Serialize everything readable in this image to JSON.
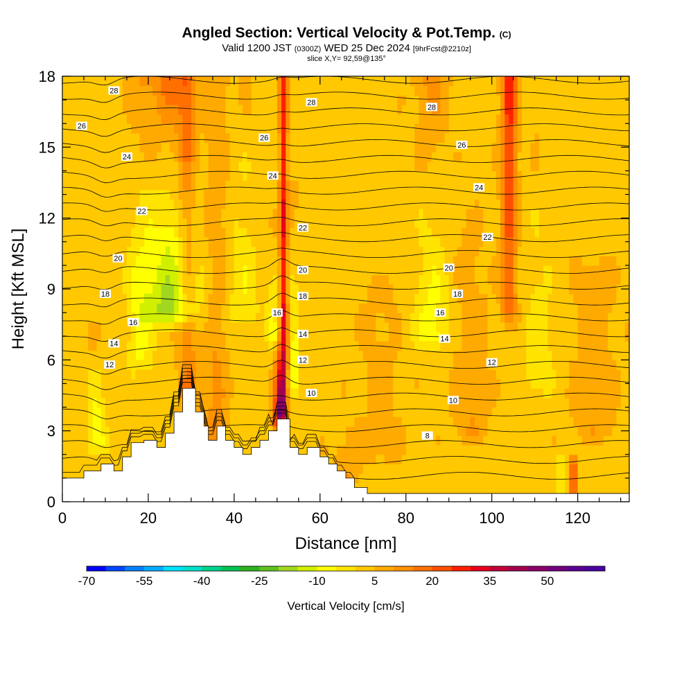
{
  "header": {
    "title": "Angled Section: Vertical Velocity & Pot.Temp.",
    "title_unit": "(C)",
    "valid_prefix": "Valid 1200 JST",
    "valid_utc": "(0300Z)",
    "valid_suffix": "WED 25 Dec 2024",
    "forecast": "[9hrFcst@2210z]",
    "slice": "slice X,Y= 92,59@135°"
  },
  "chart_data": {
    "type": "heatmap",
    "xlabel": "Distance [nm]",
    "ylabel": "Height [Kft MSL]",
    "xlim": [
      0,
      132
    ],
    "ylim": [
      0,
      18
    ],
    "x_ticks": [
      0,
      20,
      40,
      60,
      80,
      100,
      120
    ],
    "y_ticks": [
      0,
      3,
      6,
      9,
      12,
      15,
      18
    ],
    "colorbar": {
      "label": "Vertical Velocity [cm/s]",
      "tick_labels": [
        "-70",
        "-55",
        "-40",
        "-25",
        "-10",
        "5",
        "20",
        "35",
        "50"
      ],
      "min": -70,
      "max": 65,
      "step": 5,
      "colors": [
        "#0000ff",
        "#0044ff",
        "#0080ff",
        "#00aaff",
        "#00e0ff",
        "#00e0c8",
        "#00d08c",
        "#00c050",
        "#30b020",
        "#60c020",
        "#a0d820",
        "#d0f000",
        "#ffff00",
        "#ffe400",
        "#ffc800",
        "#ffaa00",
        "#ff9000",
        "#ff7000",
        "#ff5000",
        "#ff2000",
        "#e8001c",
        "#c00038",
        "#a00050",
        "#880068",
        "#70007c",
        "#5a0090",
        "#4a00a0"
      ]
    },
    "theta_contours": {
      "levels": [
        8,
        10,
        12,
        14,
        16,
        18,
        20,
        22,
        24,
        26,
        28
      ],
      "labels": [
        {
          "x": 12,
          "y": 17.4,
          "t": "28"
        },
        {
          "x": 4.5,
          "y": 15.9,
          "t": "26"
        },
        {
          "x": 15,
          "y": 14.6,
          "t": "24"
        },
        {
          "x": 18.5,
          "y": 12.3,
          "t": "22"
        },
        {
          "x": 13,
          "y": 10.3,
          "t": "20"
        },
        {
          "x": 10,
          "y": 8.8,
          "t": "18"
        },
        {
          "x": 16.5,
          "y": 7.6,
          "t": "16"
        },
        {
          "x": 12,
          "y": 6.7,
          "t": "14"
        },
        {
          "x": 11,
          "y": 5.8,
          "t": "12"
        },
        {
          "x": 58,
          "y": 16.9,
          "t": "28"
        },
        {
          "x": 47,
          "y": 15.4,
          "t": "26"
        },
        {
          "x": 49,
          "y": 13.8,
          "t": "24"
        },
        {
          "x": 56,
          "y": 11.6,
          "t": "22"
        },
        {
          "x": 56,
          "y": 9.8,
          "t": "20"
        },
        {
          "x": 56,
          "y": 8.7,
          "t": "18"
        },
        {
          "x": 50,
          "y": 8.0,
          "t": "16"
        },
        {
          "x": 56,
          "y": 7.1,
          "t": "14"
        },
        {
          "x": 56,
          "y": 6.0,
          "t": "12"
        },
        {
          "x": 58,
          "y": 4.6,
          "t": "10"
        },
        {
          "x": 86,
          "y": 16.7,
          "t": "28"
        },
        {
          "x": 93,
          "y": 15.1,
          "t": "26"
        },
        {
          "x": 97,
          "y": 13.3,
          "t": "24"
        },
        {
          "x": 99,
          "y": 11.2,
          "t": "22"
        },
        {
          "x": 90,
          "y": 9.9,
          "t": "20"
        },
        {
          "x": 92,
          "y": 8.8,
          "t": "18"
        },
        {
          "x": 88,
          "y": 8.0,
          "t": "16"
        },
        {
          "x": 89,
          "y": 6.9,
          "t": "14"
        },
        {
          "x": 100,
          "y": 5.9,
          "t": "12"
        },
        {
          "x": 91,
          "y": 4.3,
          "t": "10"
        },
        {
          "x": 85,
          "y": 2.8,
          "t": "8"
        }
      ]
    }
  }
}
